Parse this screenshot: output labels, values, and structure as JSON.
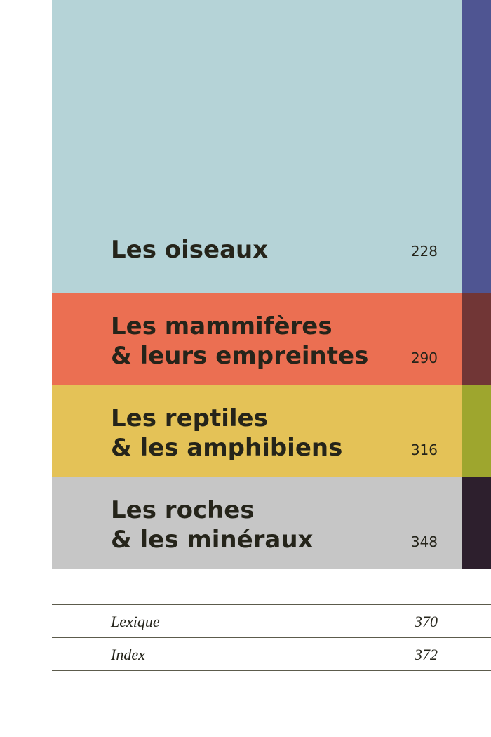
{
  "chapters": [
    {
      "lines": [
        "Les oiseaux"
      ],
      "page": "228",
      "band_color": "#b5d3d7",
      "tab_color": "#4f5592"
    },
    {
      "lines": [
        "Les mammifères",
        "& leurs empreintes"
      ],
      "page": "290",
      "band_color": "#eb6f52",
      "tab_color": "#713636"
    },
    {
      "lines": [
        "Les reptiles",
        "& les amphibiens"
      ],
      "page": "316",
      "band_color": "#e4c257",
      "tab_color": "#9ea62e"
    },
    {
      "lines": [
        "Les roches",
        "& les minéraux"
      ],
      "page": "348",
      "band_color": "#c6c6c6",
      "tab_color": "#2d1f2d"
    }
  ],
  "back_matter": [
    {
      "label": "Lexique",
      "page": "370"
    },
    {
      "label": "Index",
      "page": "372"
    }
  ]
}
